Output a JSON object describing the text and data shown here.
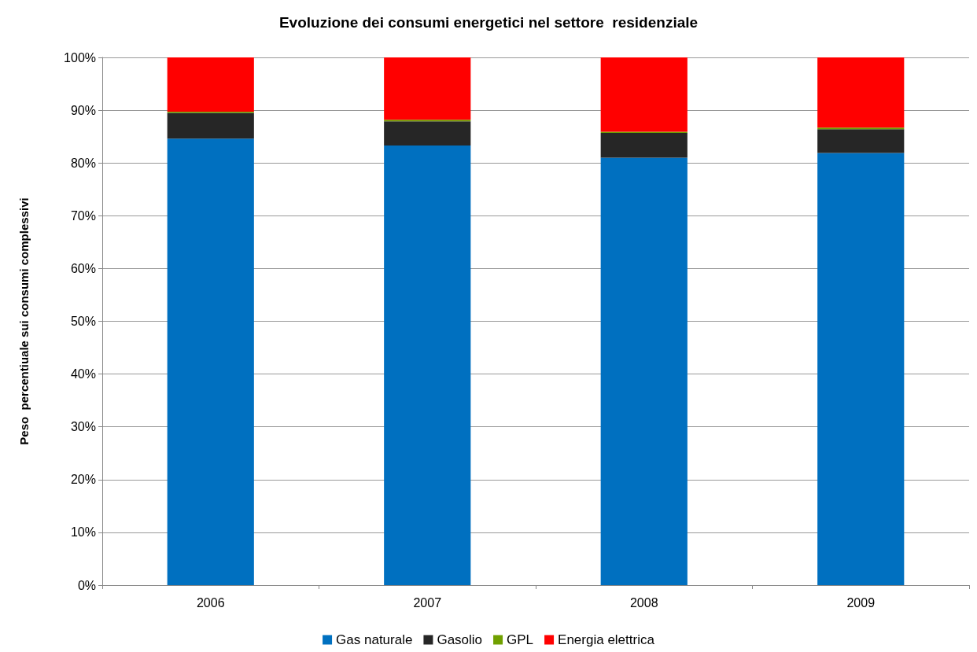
{
  "chart_data": {
    "type": "bar",
    "stacked": true,
    "title": "Evoluzione dei consumi energetici nel settore  residenziale",
    "ylabel": "Peso  percentiuale sui consumi complessivi",
    "categories": [
      "2006",
      "2007",
      "2008",
      "2009"
    ],
    "series": [
      {
        "name": "Gas naturale",
        "color": "#0070c0",
        "values": [
          84.6,
          83.3,
          81.0,
          81.9
        ]
      },
      {
        "name": "Gasolio",
        "color": "#262626",
        "values": [
          4.9,
          4.6,
          4.7,
          4.5
        ]
      },
      {
        "name": "GPL",
        "color": "#70a000",
        "values": [
          0.2,
          0.3,
          0.2,
          0.3
        ]
      },
      {
        "name": "Energia elettrica",
        "color": "#ff0000",
        "values": [
          10.3,
          11.8,
          14.1,
          13.3
        ]
      }
    ],
    "ylim": [
      0,
      100
    ],
    "yticks": [
      {
        "value": 0,
        "label": "0%"
      },
      {
        "value": 10,
        "label": "10%"
      },
      {
        "value": 20,
        "label": "20%"
      },
      {
        "value": 30,
        "label": "30%"
      },
      {
        "value": 40,
        "label": "40%"
      },
      {
        "value": 50,
        "label": "50%"
      },
      {
        "value": 60,
        "label": "60%"
      },
      {
        "value": 70,
        "label": "70%"
      },
      {
        "value": 80,
        "label": "80%"
      },
      {
        "value": 90,
        "label": "90%"
      },
      {
        "value": 100,
        "label": "100%"
      }
    ],
    "grid": "y",
    "legend": "bottom"
  }
}
